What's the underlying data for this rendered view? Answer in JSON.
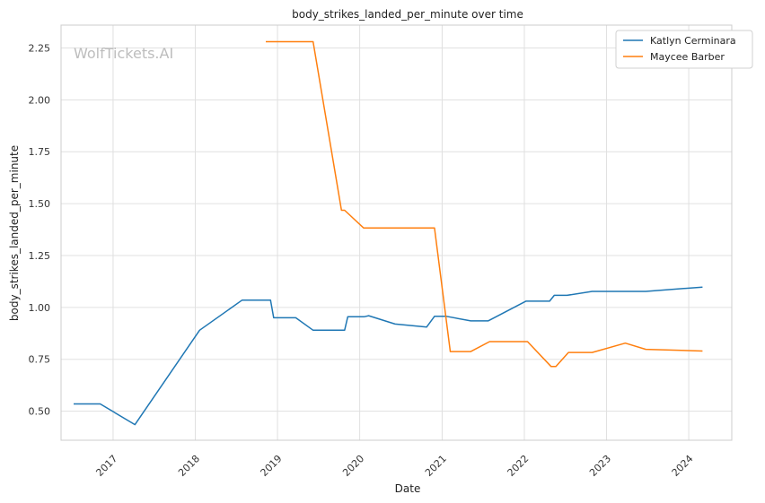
{
  "chart_data": {
    "type": "line",
    "title": "body_strikes_landed_per_minute over time",
    "xlabel": "Date",
    "ylabel": "body_strikes_landed_per_minute",
    "watermark": "WolfTickets.AI",
    "x_ticks": [
      "2017",
      "2018",
      "2019",
      "2020",
      "2021",
      "2022",
      "2023",
      "2024"
    ],
    "y_ticks": [
      "0.50",
      "0.75",
      "1.00",
      "1.25",
      "1.50",
      "1.75",
      "2.00",
      "2.25"
    ],
    "ylim": [
      0.36,
      2.36
    ],
    "xlim": [
      "2016-05-15",
      "2024-07-10"
    ],
    "grid": true,
    "legend_position": "top-right",
    "series": [
      {
        "name": "Katlyn Cerminara",
        "color": "#1f77b4",
        "points": [
          [
            "2016-07-10",
            0.535
          ],
          [
            "2016-11-05",
            0.535
          ],
          [
            "2017-04-08",
            0.435
          ],
          [
            "2018-01-20",
            0.89
          ],
          [
            "2018-07-28",
            1.035
          ],
          [
            "2018-12-01",
            1.035
          ],
          [
            "2018-12-15",
            0.95
          ],
          [
            "2019-03-23",
            0.95
          ],
          [
            "2019-06-08",
            0.89
          ],
          [
            "2019-10-26",
            0.89
          ],
          [
            "2019-11-09",
            0.955
          ],
          [
            "2020-01-20",
            0.955
          ],
          [
            "2020-02-10",
            0.96
          ],
          [
            "2020-06-06",
            0.92
          ],
          [
            "2020-10-24",
            0.905
          ],
          [
            "2020-11-28",
            0.957
          ],
          [
            "2021-01-20",
            0.957
          ],
          [
            "2021-05-08",
            0.935
          ],
          [
            "2021-07-24",
            0.935
          ],
          [
            "2022-01-08",
            1.03
          ],
          [
            "2022-04-23",
            1.03
          ],
          [
            "2022-05-14",
            1.058
          ],
          [
            "2022-07-09",
            1.058
          ],
          [
            "2022-10-29",
            1.077
          ],
          [
            "2023-06-24",
            1.077
          ],
          [
            "2024-03-02",
            1.098
          ]
        ]
      },
      {
        "name": "Maycee Barber",
        "color": "#ff7f0e",
        "points": [
          [
            "2018-11-10",
            2.28
          ],
          [
            "2019-06-08",
            2.28
          ],
          [
            "2019-10-12",
            1.468
          ],
          [
            "2019-10-26",
            1.468
          ],
          [
            "2020-01-18",
            1.383
          ],
          [
            "2020-11-28",
            1.383
          ],
          [
            "2021-02-06",
            0.787
          ],
          [
            "2021-05-08",
            0.787
          ],
          [
            "2021-07-31",
            0.835
          ],
          [
            "2022-01-15",
            0.835
          ],
          [
            "2022-04-30",
            0.715
          ],
          [
            "2022-05-21",
            0.715
          ],
          [
            "2022-07-16",
            0.783
          ],
          [
            "2022-10-29",
            0.783
          ],
          [
            "2023-03-25",
            0.828
          ],
          [
            "2023-06-24",
            0.798
          ],
          [
            "2024-03-02",
            0.79
          ]
        ]
      }
    ]
  }
}
